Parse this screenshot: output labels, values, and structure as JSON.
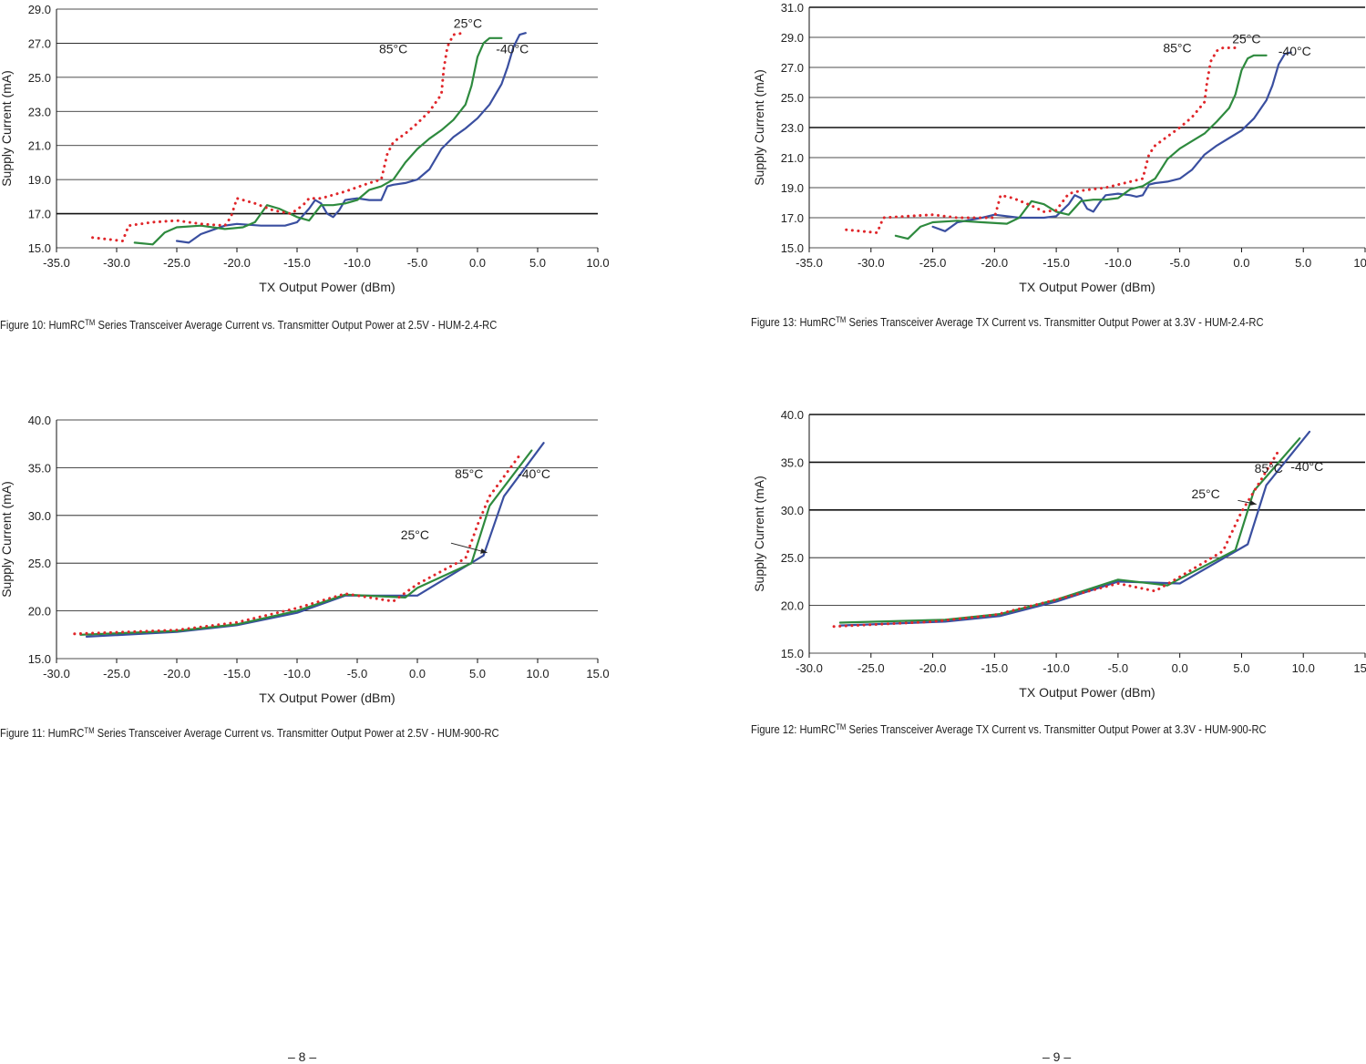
{
  "captions": {
    "fig10": {
      "prefix": "Figure 10: HumRC",
      "sup": "TM",
      "suffix": " Series Transceiver Average Current vs. Transmitter Output Power at 2.5V - HUM-2.4-RC"
    },
    "fig13": {
      "prefix": "Figure 13: HumRC",
      "sup": "TM",
      "suffix": " Series Transceiver Average TX Current vs. Transmitter Output Power at 3.3V - HUM-2.4-RC"
    },
    "fig11": {
      "prefix": "Figure 11: HumRC",
      "sup": "TM",
      "suffix": " Series Transceiver Average Current vs. Transmitter Output Power at 2.5V - HUM-900-RC"
    },
    "fig12": {
      "prefix": "Figure 12: HumRC",
      "sup": "TM",
      "suffix": " Series Transceiver Average TX Current vs. Transmitter Output Power at 3.3V - HUM-900-RC"
    }
  },
  "page_numbers": {
    "left": "– 8 –",
    "right": "– 9 –"
  },
  "colors": {
    "t85": "#e0262a",
    "t25": "#2e8a3e",
    "tm40": "#3a4fa0"
  },
  "chart_data": [
    {
      "id": "fig10",
      "type": "line",
      "xlabel": "TX Output Power (dBm)",
      "ylabel": "Supply Current (mA)",
      "xlim": [
        -35,
        10
      ],
      "ylim": [
        15,
        29
      ],
      "xticks": [
        -35,
        -30,
        -25,
        -20,
        -15,
        -10,
        -5,
        0,
        5,
        10
      ],
      "yticks": [
        15,
        17,
        19,
        21,
        23,
        25,
        27,
        29
      ],
      "bold_grid": [
        17
      ],
      "grid": true,
      "series": [
        {
          "name": "85°C",
          "key": "t85",
          "dotted": true,
          "x": [
            -32,
            -29.5,
            -29,
            -27,
            -25,
            -23,
            -21,
            -20.5,
            -20,
            -18.5,
            -17,
            -15.5,
            -14.5,
            -14,
            -13,
            -11,
            -9,
            -8,
            -7.5,
            -7,
            -6,
            -5,
            -4,
            -3,
            -2.8,
            -2.5,
            -2,
            -1.2
          ],
          "y": [
            15.6,
            15.4,
            16.3,
            16.5,
            16.6,
            16.4,
            16.3,
            16.8,
            17.9,
            17.6,
            17.2,
            17.0,
            17.5,
            17.9,
            17.9,
            18.3,
            18.8,
            19.0,
            20.5,
            21.2,
            21.7,
            22.3,
            23.0,
            24.0,
            25.5,
            26.8,
            27.5,
            27.6
          ]
        },
        {
          "name": "25°C",
          "key": "t25",
          "x": [
            -28.5,
            -27,
            -26,
            -25,
            -23,
            -21,
            -19.5,
            -18.5,
            -17.5,
            -16.5,
            -15,
            -14,
            -13,
            -12,
            -11,
            -10,
            -9,
            -8,
            -7,
            -6,
            -5,
            -4,
            -3,
            -2,
            -1,
            -0.5,
            0,
            0.5,
            1,
            1.5,
            2
          ],
          "y": [
            15.3,
            15.2,
            15.9,
            16.2,
            16.3,
            16.1,
            16.2,
            16.5,
            17.5,
            17.3,
            16.8,
            16.6,
            17.5,
            17.5,
            17.6,
            17.8,
            18.4,
            18.6,
            19.0,
            20.0,
            20.8,
            21.4,
            21.9,
            22.5,
            23.4,
            24.5,
            26.2,
            27.0,
            27.3,
            27.3,
            27.3
          ]
        },
        {
          "name": "-40°C",
          "key": "tm40",
          "x": [
            -25,
            -24,
            -23,
            -21,
            -20,
            -18,
            -16,
            -15,
            -14,
            -13.5,
            -13,
            -12.5,
            -12,
            -11.5,
            -11,
            -10,
            -9,
            -8.5,
            -8,
            -7.5,
            -7,
            -6,
            -5,
            -4,
            -3,
            -2,
            -1,
            0,
            1,
            2,
            2.5,
            3,
            3.5,
            4
          ],
          "y": [
            15.4,
            15.3,
            15.8,
            16.3,
            16.4,
            16.3,
            16.3,
            16.5,
            17.3,
            17.8,
            17.6,
            17.0,
            16.8,
            17.2,
            17.8,
            17.9,
            17.8,
            17.8,
            17.8,
            18.6,
            18.7,
            18.8,
            19.0,
            19.6,
            20.8,
            21.5,
            22.0,
            22.6,
            23.4,
            24.6,
            25.6,
            26.8,
            27.5,
            27.6
          ]
        }
      ],
      "labels": [
        {
          "text": "85°C",
          "x": -7,
          "y": 26.4
        },
        {
          "text": "25°C",
          "x": -0.8,
          "y": 27.9
        },
        {
          "text": "-40°C",
          "x": 2.9,
          "y": 26.4
        }
      ]
    },
    {
      "id": "fig13",
      "type": "line",
      "xlabel": "TX Output Power (dBm)",
      "ylabel": "Supply Current (mA)",
      "xlim": [
        -35,
        10
      ],
      "ylim": [
        15,
        31
      ],
      "xticks": [
        -35,
        -30,
        -25,
        -20,
        -15,
        -10,
        -5,
        0,
        5,
        10
      ],
      "yticks": [
        15,
        17,
        19,
        21,
        23,
        25,
        27,
        29,
        31
      ],
      "bold_grid": [
        23,
        31
      ],
      "grid": true,
      "series": [
        {
          "name": "85°C",
          "key": "t85",
          "dotted": true,
          "x": [
            -32,
            -29.5,
            -29,
            -27,
            -25,
            -23,
            -21,
            -20,
            -19.5,
            -18.5,
            -17,
            -16,
            -15,
            -14,
            -13,
            -11,
            -9,
            -8,
            -7.5,
            -7,
            -6,
            -5,
            -4,
            -3,
            -2.8,
            -2.5,
            -2,
            -1.5,
            -0.5
          ],
          "y": [
            16.2,
            16.0,
            17.0,
            17.1,
            17.2,
            17.0,
            17.0,
            17.0,
            18.5,
            18.3,
            17.8,
            17.4,
            17.5,
            18.6,
            18.8,
            19.0,
            19.4,
            19.6,
            21.2,
            21.8,
            22.4,
            23.0,
            23.7,
            24.7,
            26.0,
            27.4,
            28.1,
            28.3,
            28.3
          ]
        },
        {
          "name": "25°C",
          "key": "t25",
          "x": [
            -28,
            -27,
            -26,
            -25,
            -23,
            -21,
            -19,
            -18,
            -17,
            -16,
            -15,
            -14,
            -13,
            -12,
            -11,
            -10,
            -9,
            -8,
            -7,
            -6,
            -5,
            -4,
            -3,
            -2,
            -1,
            -0.5,
            0,
            0.5,
            1,
            1.5,
            2
          ],
          "y": [
            15.8,
            15.6,
            16.4,
            16.7,
            16.8,
            16.7,
            16.6,
            17.0,
            18.1,
            17.9,
            17.4,
            17.2,
            18.1,
            18.2,
            18.2,
            18.3,
            18.9,
            19.1,
            19.6,
            20.9,
            21.6,
            22.1,
            22.6,
            23.4,
            24.3,
            25.2,
            26.8,
            27.6,
            27.8,
            27.8,
            27.8
          ]
        },
        {
          "name": "-40°C",
          "key": "tm40",
          "x": [
            -25,
            -24,
            -23,
            -21,
            -20,
            -18,
            -16,
            -15,
            -14,
            -13.5,
            -13,
            -12.5,
            -12,
            -11.5,
            -11,
            -10,
            -9,
            -8.5,
            -8,
            -7.5,
            -7,
            -6,
            -5,
            -4,
            -3,
            -2,
            -1,
            0,
            1,
            2,
            2.5,
            3,
            3.5,
            4
          ],
          "y": [
            16.4,
            16.1,
            16.7,
            17.0,
            17.2,
            17.0,
            17.0,
            17.1,
            17.9,
            18.5,
            18.3,
            17.6,
            17.4,
            18.0,
            18.5,
            18.6,
            18.5,
            18.4,
            18.5,
            19.2,
            19.3,
            19.4,
            19.6,
            20.2,
            21.2,
            21.8,
            22.3,
            22.8,
            23.6,
            24.8,
            25.8,
            27.2,
            27.9,
            28.0
          ]
        }
      ],
      "labels": [
        {
          "text": "85°C",
          "x": -5.2,
          "y": 28.0
        },
        {
          "text": "25°C",
          "x": 0.4,
          "y": 28.6
        },
        {
          "text": "-40°C",
          "x": 4.3,
          "y": 27.8
        }
      ]
    },
    {
      "id": "fig11",
      "type": "line",
      "xlabel": "TX Output Power (dBm)",
      "ylabel": "Supply Current (mA)",
      "xlim": [
        -30,
        15
      ],
      "ylim": [
        15,
        40
      ],
      "xticks": [
        -30,
        -25,
        -20,
        -15,
        -10,
        -5,
        0,
        5,
        10,
        15
      ],
      "yticks": [
        15,
        20,
        25,
        30,
        35,
        40
      ],
      "bold_grid": [],
      "grid": true,
      "series": [
        {
          "name": "85°C",
          "key": "t85",
          "dotted": true,
          "x": [
            -28.5,
            -20,
            -15,
            -10,
            -6,
            -2,
            0,
            4,
            5,
            6,
            8.5
          ],
          "y": [
            17.6,
            18.0,
            18.8,
            20.3,
            21.8,
            21.0,
            22.8,
            25.5,
            29.0,
            32.0,
            36.3
          ]
        },
        {
          "name": "25°C",
          "key": "t25",
          "x": [
            -28,
            -20,
            -15,
            -10,
            -6,
            -1,
            0,
            4.5,
            6,
            9.5
          ],
          "y": [
            17.5,
            17.9,
            18.6,
            20.0,
            21.7,
            21.4,
            22.4,
            25.0,
            31.0,
            36.8
          ]
        },
        {
          "name": "-40°C",
          "key": "tm40",
          "x": [
            -27.5,
            -20,
            -15,
            -10,
            -6,
            0,
            5.5,
            7.2,
            10.5
          ],
          "y": [
            17.3,
            17.8,
            18.5,
            19.8,
            21.6,
            21.6,
            25.8,
            32.0,
            37.6
          ]
        }
      ],
      "labels": [
        {
          "text": "85°C",
          "x": 4.3,
          "y": 33.9
        },
        {
          "text": "-40°C",
          "x": 9.7,
          "y": 33.9
        },
        {
          "text": "25°C",
          "x": -0.2,
          "y": 27.5
        }
      ],
      "arrow": {
        "from": [
          2.8,
          27.1
        ],
        "to": [
          5.8,
          26.1
        ]
      }
    },
    {
      "id": "fig12",
      "type": "line",
      "xlabel": "TX Output Power (dBm)",
      "ylabel": "Supply Current (mA)",
      "xlim": [
        -30,
        15
      ],
      "ylim": [
        15,
        40
      ],
      "xticks": [
        -30,
        -25,
        -20,
        -15,
        -10,
        -5,
        0,
        5,
        10,
        15
      ],
      "yticks": [
        15,
        20,
        25,
        30,
        35,
        40
      ],
      "bold_grid": [
        30,
        35,
        40
      ],
      "grid": true,
      "series": [
        {
          "name": "85°C",
          "key": "t85",
          "dotted": true,
          "x": [
            -28,
            -20,
            -15,
            -10,
            -5,
            -2,
            0,
            3.5,
            5,
            6.5,
            8
          ],
          "y": [
            17.8,
            18.3,
            19.0,
            20.6,
            22.3,
            21.5,
            23.0,
            25.7,
            29.8,
            33.0,
            36.2
          ]
        },
        {
          "name": "25°C",
          "key": "t25",
          "x": [
            -27.5,
            -19,
            -14.5,
            -10,
            -5,
            -1,
            0,
            4.5,
            6,
            9.7
          ],
          "y": [
            18.2,
            18.5,
            19.1,
            20.6,
            22.7,
            22.1,
            22.8,
            25.8,
            32.0,
            37.5
          ]
        },
        {
          "name": "-40°C",
          "key": "tm40",
          "x": [
            -27.5,
            -19,
            -14.5,
            -10,
            -5,
            0,
            5.5,
            7,
            10.5
          ],
          "y": [
            17.9,
            18.3,
            18.9,
            20.4,
            22.5,
            22.3,
            26.4,
            32.6,
            38.2
          ]
        }
      ],
      "labels": [
        {
          "text": "85°C",
          "x": 7.2,
          "y": 33.9
        },
        {
          "text": "-40°C",
          "x": 10.3,
          "y": 34.1
        },
        {
          "text": "25°C",
          "x": 2.1,
          "y": 31.2
        }
      ],
      "arrow": {
        "from": [
          4.7,
          31.0
        ],
        "to": [
          6.2,
          30.6
        ]
      }
    }
  ]
}
